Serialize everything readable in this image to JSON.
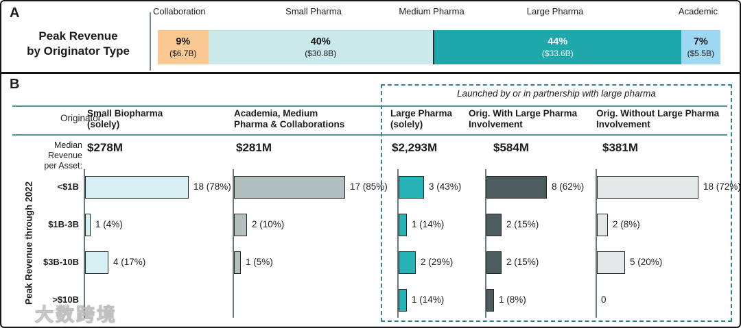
{
  "panel_a": {
    "label": "A",
    "title_lines": [
      "Peak Revenue",
      "by Originator Type"
    ]
  },
  "panel_b": {
    "label": "B",
    "group_caption": "Launched by or in partnership with large pharma",
    "originator_label": "Originator:",
    "median_label_lines": [
      "Median Revenue",
      "per Asset:"
    ],
    "y_axis_label": "Peak Revenue through 2022"
  },
  "watermark": {
    "text": "大数跨境"
  },
  "colors": {
    "teal_line": "#4a9496",
    "dashed_border": "#30828b",
    "chart_axis": "#6a7a7a",
    "panel_border": "#141414"
  },
  "chart_data": [
    {
      "type": "bar",
      "subtype": "stacked-horizontal-100pct",
      "title": "Peak Revenue by Originator Type",
      "axis_labels": [
        "Collaboration",
        "Small Pharma",
        "Medium Pharma",
        "Large Pharma",
        "Academic"
      ],
      "segments": [
        {
          "label": "Collaboration",
          "pct": 9,
          "pct_text": "9%",
          "amount_text": "($6.7B)",
          "color": "#f9c893",
          "text_color": "#141414"
        },
        {
          "label": "Small Pharma",
          "pct": 40,
          "pct_text": "40%",
          "amount_text": "($30.8B)",
          "color": "#cbe8ea",
          "text_color": "#141414"
        },
        {
          "label": "Medium Pharma",
          "divider": true,
          "color": "#263238"
        },
        {
          "label": "Large Pharma",
          "pct": 44,
          "pct_text": "44%",
          "amount_text": "($33.6B)",
          "color": "#1ea8ac",
          "text_color": "#ffffff"
        },
        {
          "label": "Academic",
          "pct": 7,
          "pct_text": "7%",
          "amount_text": "($5.5B)",
          "color": "#9fd8f2",
          "text_color": "#141414"
        }
      ]
    },
    {
      "type": "bar",
      "subtype": "grouped-horizontal-counts",
      "ylabel": "Peak Revenue through 2022",
      "categories": [
        "<$1B",
        "$1B-3B",
        "$3B-10B",
        ">$10B"
      ],
      "large_pharma_group_caption": "Launched by or in partnership with large pharma",
      "series": [
        {
          "name": "Small Biopharma (solely)",
          "header_lines": [
            "Small Biopharma",
            "(solely)"
          ],
          "median_per_asset": "$278M",
          "color": "#d7f0f3",
          "in_large_pharma_group": false,
          "values": [
            {
              "count": 18,
              "pct": "78%"
            },
            {
              "count": 1,
              "pct": "4%"
            },
            {
              "count": 4,
              "pct": "17%"
            },
            null
          ]
        },
        {
          "name": "Academia, Medium Pharma & Collaborations",
          "header_lines": [
            "Academia, Medium",
            "Pharma & Collaborations"
          ],
          "median_per_asset": "$281M",
          "color": "#b2bfbf",
          "in_large_pharma_group": false,
          "values": [
            {
              "count": 17,
              "pct": "85%"
            },
            {
              "count": 2,
              "pct": "10%"
            },
            {
              "count": 1,
              "pct": "5%"
            },
            null
          ]
        },
        {
          "name": "Large Pharma (solely)",
          "header_lines": [
            "Large Pharma",
            "(solely)"
          ],
          "median_per_asset": "$2,293M",
          "color": "#27b2b6",
          "in_large_pharma_group": true,
          "values": [
            {
              "count": 3,
              "pct": "43%"
            },
            {
              "count": 1,
              "pct": "14%"
            },
            {
              "count": 2,
              "pct": "29%"
            },
            {
              "count": 1,
              "pct": "14%"
            }
          ]
        },
        {
          "name": "Orig. With Large Pharma Involvement",
          "header_lines": [
            "Orig. With Large Pharma",
            "Involvement"
          ],
          "median_per_asset": "$584M",
          "color": "#4d5c5e",
          "in_large_pharma_group": true,
          "values": [
            {
              "count": 8,
              "pct": "62%"
            },
            {
              "count": 2,
              "pct": "15%"
            },
            {
              "count": 2,
              "pct": "15%"
            },
            {
              "count": 1,
              "pct": "8%"
            }
          ]
        },
        {
          "name": "Orig. Without Large Pharma Involvement",
          "header_lines": [
            "Orig. Without Large Pharma",
            "Involvement"
          ],
          "median_per_asset": "$381M",
          "color": "#e4e8e8",
          "in_large_pharma_group": true,
          "values": [
            {
              "count": 18,
              "pct": "72%"
            },
            {
              "count": 2,
              "pct": "8%"
            },
            {
              "count": 5,
              "pct": "20%"
            },
            {
              "count": 0,
              "pct": null
            }
          ]
        }
      ]
    }
  ]
}
